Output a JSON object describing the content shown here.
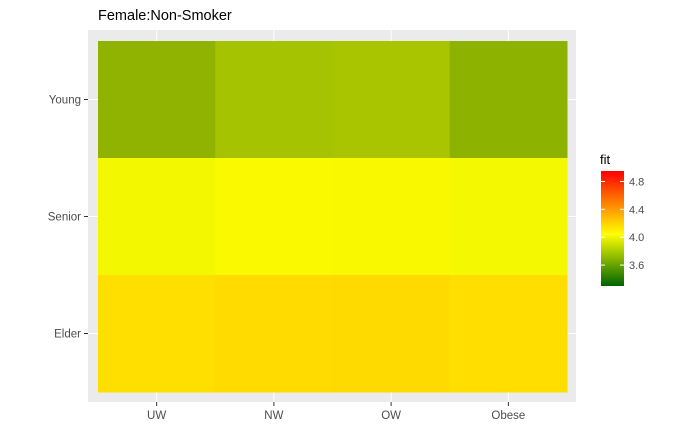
{
  "chart_data": {
    "type": "heatmap",
    "title": "Female:Non-Smoker",
    "xlabel": "",
    "ylabel": "",
    "x_categories": [
      "UW",
      "NW",
      "OW",
      "Obese"
    ],
    "y_categories": [
      "Young",
      "Senior",
      "Elder"
    ],
    "values": [
      [
        3.74,
        3.88,
        3.9,
        3.73
      ],
      [
        4.2,
        4.24,
        4.24,
        4.21
      ],
      [
        4.37,
        4.39,
        4.4,
        4.38
      ]
    ],
    "colors": [
      [
        "#8fb300",
        "#a5c300",
        "#a9c500",
        "#8eb200"
      ],
      [
        "#f3f800",
        "#faf900",
        "#faf800",
        "#f4f800"
      ],
      [
        "#ffdf00",
        "#ffdb00",
        "#ffda00",
        "#ffde00"
      ]
    ],
    "legend": {
      "title": "fit",
      "ticks": [
        3.6,
        4.0,
        4.4,
        4.8
      ],
      "tick_labels": [
        "3.6",
        "4.0",
        "4.4",
        "4.8"
      ],
      "range": [
        3.3,
        4.95
      ],
      "gradient": [
        "#006400",
        "#ffff00",
        "#ff0000"
      ],
      "placement": "right"
    },
    "panel_background": "#ebebeb",
    "gridlines": true
  }
}
